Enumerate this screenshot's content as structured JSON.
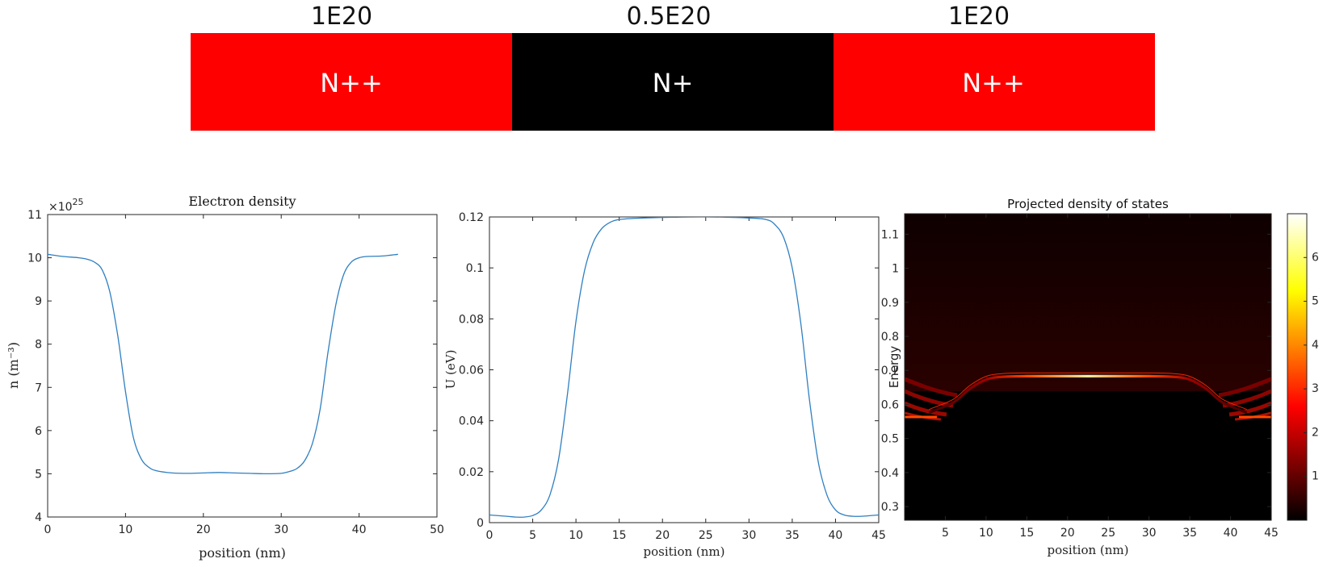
{
  "colors": {
    "nplusplus": "#ff0000",
    "nplus": "#000000",
    "curve": "#2f7fc1"
  },
  "device": {
    "segments": [
      {
        "label": "N++",
        "doping": "1E20",
        "color": "#ff0000"
      },
      {
        "label": "N+",
        "doping": "0.5E20",
        "color": "#000000"
      },
      {
        "label": "N++",
        "doping": "1E20",
        "color": "#ff0000"
      }
    ]
  },
  "chart_data": [
    {
      "type": "line",
      "title": "Electron density",
      "xlabel": "position (nm)",
      "ylabel": "n (m⁻³)",
      "exponent_label": "×10",
      "exponent_power": "25",
      "xlim": [
        0,
        50
      ],
      "ylim": [
        4,
        11
      ],
      "xticks": [
        "0",
        "10",
        "20",
        "30",
        "40",
        "50"
      ],
      "yticks": [
        "4",
        "5",
        "6",
        "7",
        "8",
        "9",
        "10",
        "11"
      ],
      "x": [
        0,
        2,
        4,
        5,
        6,
        7,
        8,
        9,
        10,
        11,
        12,
        13,
        14,
        16,
        18,
        20,
        22,
        24,
        26,
        28,
        30,
        31,
        32,
        33,
        34,
        35,
        36,
        37,
        38,
        39,
        40,
        41,
        43,
        45
      ],
      "y": [
        10.08,
        10.03,
        10.0,
        9.97,
        9.9,
        9.72,
        9.2,
        8.2,
        6.9,
        5.85,
        5.35,
        5.15,
        5.07,
        5.02,
        5.01,
        5.02,
        5.03,
        5.02,
        5.01,
        5.0,
        5.01,
        5.05,
        5.12,
        5.3,
        5.7,
        6.5,
        7.8,
        8.9,
        9.6,
        9.9,
        10.0,
        10.03,
        10.04,
        10.08
      ]
    },
    {
      "type": "line",
      "title": "",
      "xlabel": "position (nm)",
      "ylabel": "U (eV)",
      "xlim": [
        0,
        45
      ],
      "ylim": [
        0,
        0.12
      ],
      "xticks": [
        "0",
        "5",
        "10",
        "15",
        "20",
        "25",
        "30",
        "35",
        "40",
        "45"
      ],
      "yticks": [
        "0",
        "0.02",
        "0.04",
        "0.06",
        "0.08",
        "0.1",
        "0.12"
      ],
      "x": [
        0,
        2,
        3,
        4,
        5,
        6,
        7,
        8,
        9,
        10,
        11,
        12,
        13,
        14,
        15,
        17,
        20,
        25,
        30,
        32,
        33,
        34,
        35,
        36,
        37,
        38,
        39,
        40,
        41,
        42,
        43,
        45
      ],
      "y": [
        0.003,
        0.0025,
        0.0022,
        0.0022,
        0.0028,
        0.005,
        0.011,
        0.025,
        0.05,
        0.079,
        0.099,
        0.11,
        0.1155,
        0.118,
        0.119,
        0.1195,
        0.1198,
        0.12,
        0.1196,
        0.119,
        0.117,
        0.112,
        0.1,
        0.078,
        0.048,
        0.024,
        0.011,
        0.005,
        0.003,
        0.0025,
        0.0025,
        0.003
      ]
    },
    {
      "type": "heatmap",
      "title": "Projected density of states",
      "xlabel": "position (nm)",
      "ylabel": "Energy",
      "xlim": [
        0,
        45
      ],
      "ylim": [
        0.26,
        1.16
      ],
      "xticks": [
        "5",
        "10",
        "15",
        "20",
        "25",
        "30",
        "35",
        "40",
        "45"
      ],
      "yticks": [
        "0.3",
        "0.4",
        "0.5",
        "0.6",
        "0.7",
        "0.8",
        "0.9",
        "1",
        "1.1"
      ],
      "colorbar_ticks": [
        "1",
        "2",
        "3",
        "4",
        "5",
        "6"
      ],
      "colorbar_range": [
        0,
        7
      ],
      "colormap": "hot",
      "band_edge_center": 0.683,
      "band_edge_contacts": 0.566
    }
  ]
}
